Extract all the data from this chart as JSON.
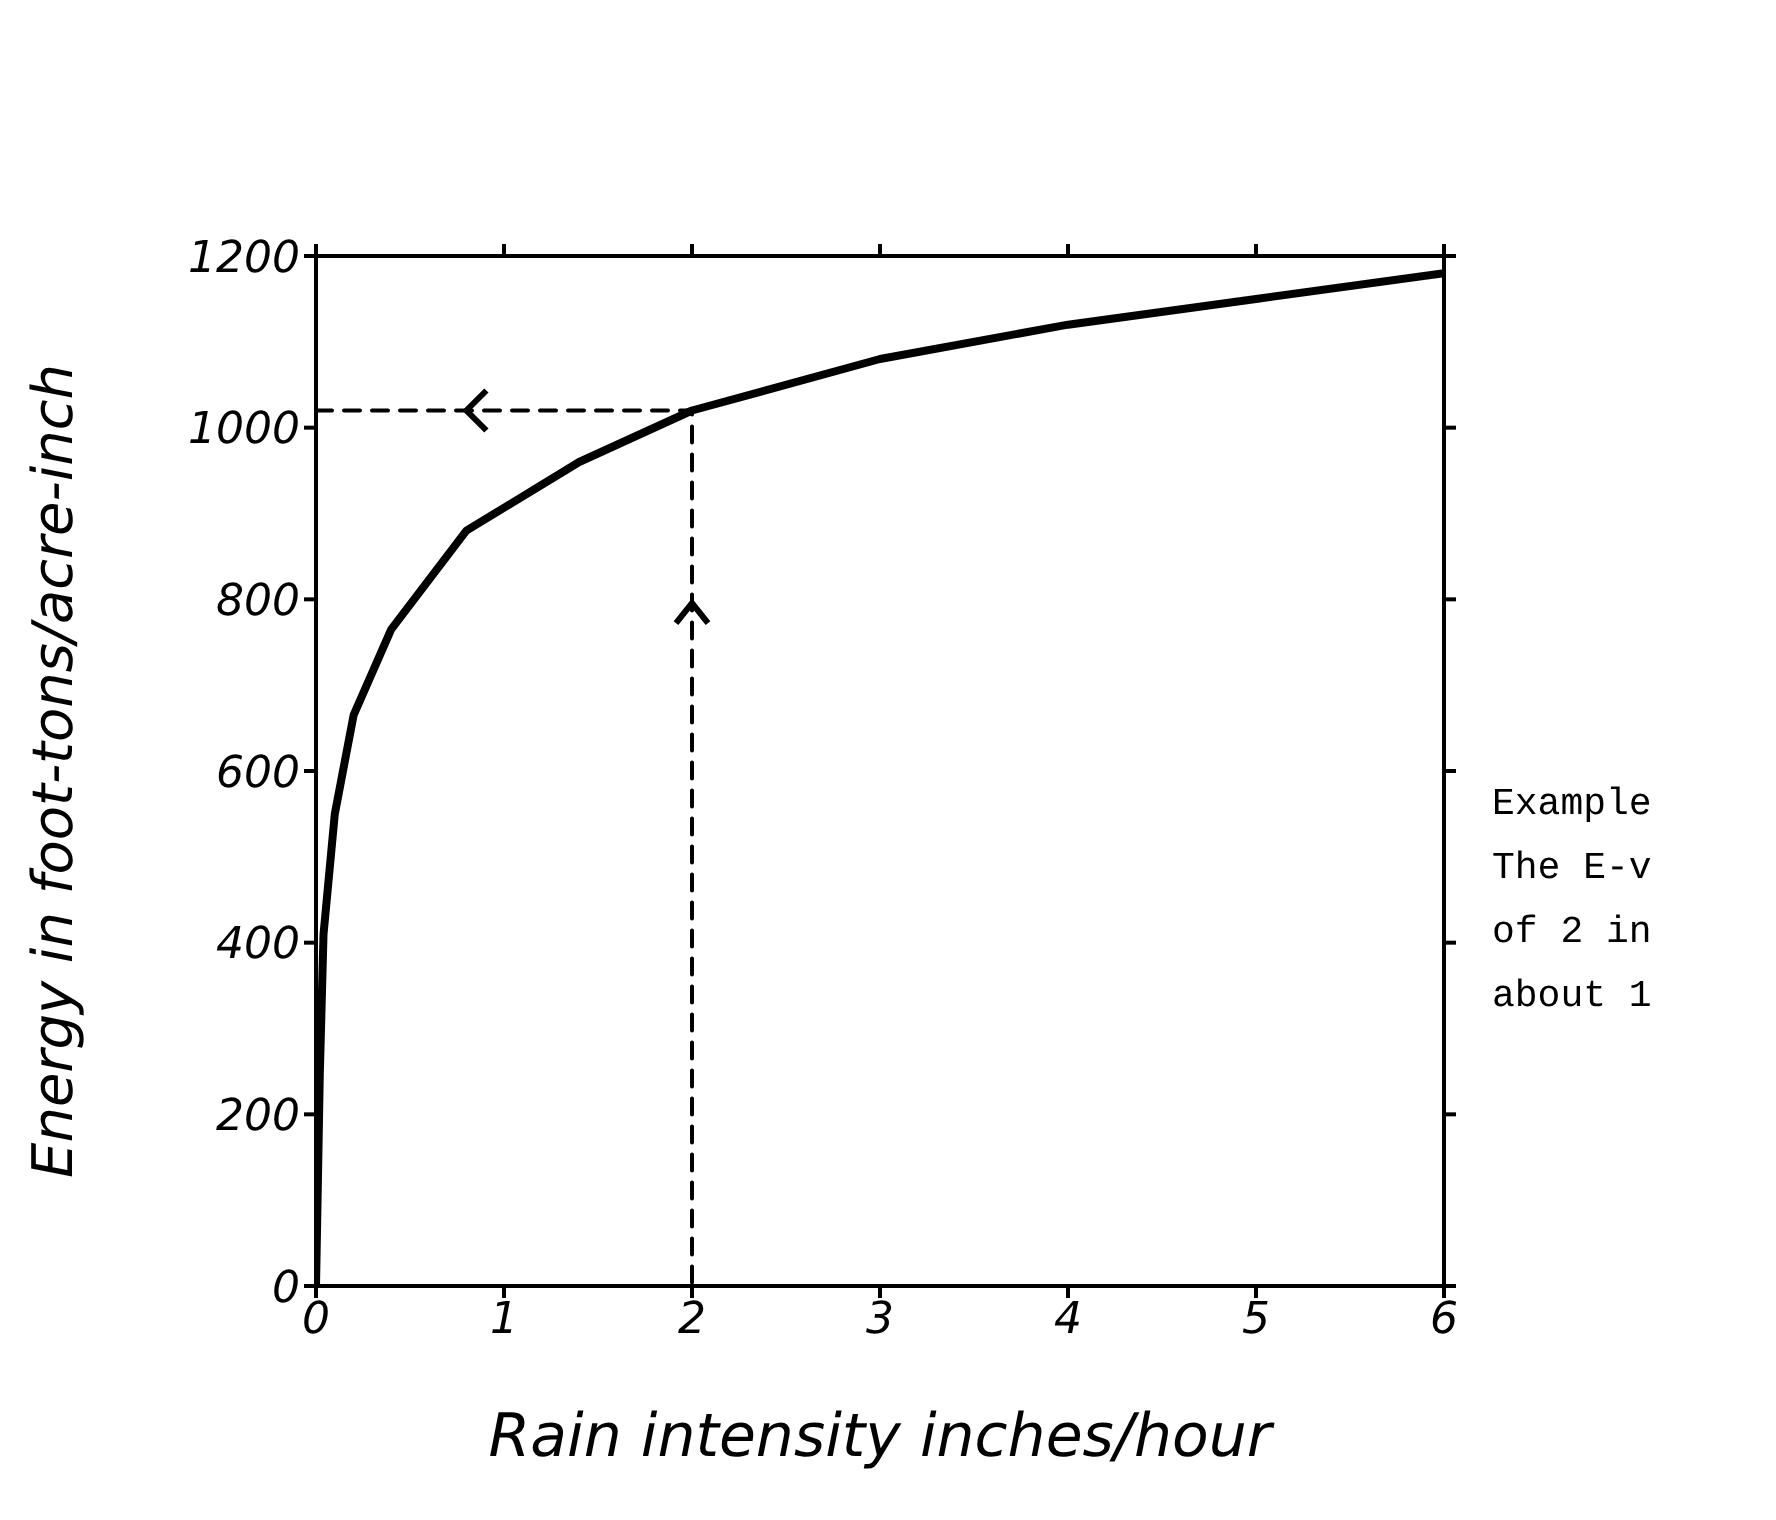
{
  "chart_data": {
    "type": "line",
    "xlabel": "Rain intensity inches/hour",
    "ylabel": "Energy in foot-tons/acre-inch",
    "xlim": [
      0,
      6
    ],
    "xticks": [
      0,
      1,
      2,
      3,
      4,
      5,
      6
    ],
    "ylim": [
      0,
      1200
    ],
    "yticks": [
      0,
      200,
      400,
      600,
      800,
      1000,
      1200
    ],
    "marker": "none",
    "series": [
      {
        "color": "#000000",
        "line_style": "solid",
        "x": [
          0,
          0.01,
          0.02,
          0.04,
          0.1,
          0.2,
          0.4,
          0.8,
          1.4,
          2,
          3,
          4,
          5,
          6
        ],
        "values": [
          0,
          120,
          245,
          410,
          550,
          665,
          765,
          880,
          960,
          1020,
          1080,
          1120,
          1150,
          1180
        ]
      },
      {
        "color": "#000000",
        "line_style": "dashed",
        "x": [
          0,
          2,
          2
        ],
        "values": [
          1020,
          1020,
          0
        ]
      }
    ],
    "annotations": [
      "Example",
      "The E-v",
      "of 2 in",
      "about 1"
    ]
  }
}
